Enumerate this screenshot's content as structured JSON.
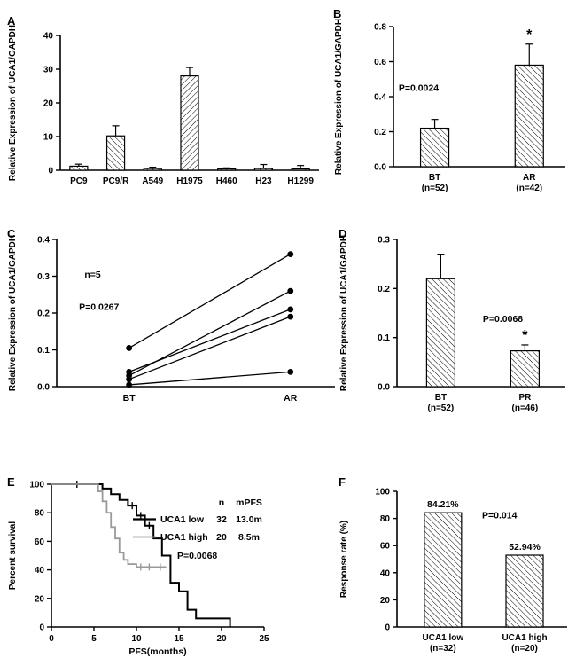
{
  "colors": {
    "ink": "#000000",
    "gray": "#9a9a9a",
    "background": "#ffffff"
  },
  "panels": {
    "A": {
      "label": "A"
    },
    "B": {
      "label": "B"
    },
    "C": {
      "label": "C"
    },
    "D": {
      "label": "D"
    },
    "E": {
      "label": "E"
    },
    "F": {
      "label": "F"
    }
  },
  "chart_data": [
    {
      "panel": "A",
      "type": "bar",
      "ylabel": "Relative Expression of UCA1/GAPDH",
      "ylim": [
        0,
        40
      ],
      "ytick_labels": [
        "0",
        "10",
        "20",
        "30",
        "40"
      ],
      "categories": [
        "PC9",
        "PC9/R",
        "A549",
        "H1975",
        "H460",
        "H23",
        "H1299"
      ],
      "values": [
        1.2,
        10.2,
        0.5,
        28,
        0.4,
        0.5,
        0.4
      ],
      "errors": [
        0.6,
        3.0,
        0.4,
        2.5,
        0.3,
        1.2,
        1.0
      ],
      "hatch_dirs": [
        "/",
        "/",
        "/",
        "\\",
        "/",
        "/",
        "/"
      ]
    },
    {
      "panel": "B",
      "type": "bar",
      "ylabel": "Relative Expression of UCA1/GAPDH",
      "ylim": [
        0,
        0.8
      ],
      "ytick_labels": [
        "0.0",
        "0.2",
        "0.4",
        "0.6",
        "0.8"
      ],
      "categories": [
        "BT",
        "AR"
      ],
      "subcategories": [
        "(n=52)",
        "(n=42)"
      ],
      "values": [
        0.22,
        0.58
      ],
      "errors": [
        0.05,
        0.12
      ],
      "annotations": [
        "P=0.0024"
      ],
      "star_symbol": "*",
      "star_index": 1
    },
    {
      "panel": "C",
      "type": "paired-line",
      "ylabel": "Relative Expression of UCA1/GAPDH",
      "ylim": [
        0,
        0.4
      ],
      "ytick_labels": [
        "0.0",
        "0.1",
        "0.2",
        "0.3",
        "0.4"
      ],
      "categories": [
        "BT",
        "AR"
      ],
      "pairs": [
        [
          0.105,
          0.36
        ],
        [
          0.03,
          0.26
        ],
        [
          0.04,
          0.21
        ],
        [
          0.02,
          0.19
        ],
        [
          0.005,
          0.04
        ]
      ],
      "annotations": [
        "n=5",
        "P=0.0267"
      ]
    },
    {
      "panel": "D",
      "type": "bar",
      "ylabel": "Relative Expression of UCA1/GAPDH",
      "ylim": [
        0,
        0.3
      ],
      "ytick_labels": [
        "0.0",
        "0.1",
        "0.2",
        "0.3"
      ],
      "categories": [
        "BT",
        "PR"
      ],
      "subcategories": [
        "(n=52)",
        "(n=46)"
      ],
      "values": [
        0.22,
        0.073
      ],
      "errors": [
        0.05,
        0.012
      ],
      "annotations": [
        "P=0.0068"
      ],
      "star_symbol": "*",
      "star_index": 1
    },
    {
      "panel": "E",
      "type": "km-survival",
      "ylabel": "Percent survival",
      "xlabel": "PFS(months)",
      "xlim": [
        0,
        25
      ],
      "ylim": [
        0,
        100
      ],
      "xtick_labels": [
        "0",
        "5",
        "10",
        "15",
        "20",
        "25"
      ],
      "ytick_labels": [
        "0",
        "20",
        "40",
        "60",
        "80",
        "100"
      ],
      "legend_headers": [
        "n",
        "mPFS"
      ],
      "p_value": "P=0.0068",
      "series": [
        {
          "name": "UCA1 low",
          "n": "32",
          "mpfs": "13.0m",
          "color": "#000000",
          "steps": [
            [
              0,
              100
            ],
            [
              6,
              100
            ],
            [
              6,
              97
            ],
            [
              7,
              97
            ],
            [
              7,
              93
            ],
            [
              8,
              93
            ],
            [
              8,
              89
            ],
            [
              9,
              89
            ],
            [
              9,
              85
            ],
            [
              10,
              85
            ],
            [
              10,
              78
            ],
            [
              11,
              78
            ],
            [
              11,
              71
            ],
            [
              12,
              71
            ],
            [
              12,
              62
            ],
            [
              13,
              62
            ],
            [
              13,
              50
            ],
            [
              14,
              50
            ],
            [
              14,
              31
            ],
            [
              15,
              31
            ],
            [
              15,
              25
            ],
            [
              16,
              25
            ],
            [
              16,
              12
            ],
            [
              17,
              12
            ],
            [
              17,
              6
            ],
            [
              21,
              6
            ],
            [
              21,
              0
            ]
          ],
          "censors": [
            [
              3,
              100
            ],
            [
              9.5,
              85
            ],
            [
              10.5,
              78
            ],
            [
              11.5,
              71
            ]
          ]
        },
        {
          "name": "UCA1 high",
          "n": "20",
          "mpfs": "8.5m",
          "color": "#9a9a9a",
          "steps": [
            [
              0,
              100
            ],
            [
              5.5,
              100
            ],
            [
              5.5,
              95
            ],
            [
              6,
              95
            ],
            [
              6,
              88
            ],
            [
              6.5,
              88
            ],
            [
              6.5,
              80
            ],
            [
              7,
              80
            ],
            [
              7,
              70
            ],
            [
              7.5,
              70
            ],
            [
              7.5,
              62
            ],
            [
              8,
              62
            ],
            [
              8,
              52
            ],
            [
              8.5,
              52
            ],
            [
              8.5,
              47
            ],
            [
              9,
              47
            ],
            [
              9,
              44
            ],
            [
              10,
              44
            ],
            [
              10,
              42
            ],
            [
              13.5,
              42
            ]
          ],
          "censors": [
            [
              10.5,
              42
            ],
            [
              11.5,
              42
            ],
            [
              12.8,
              42
            ]
          ]
        }
      ]
    },
    {
      "panel": "F",
      "type": "bar",
      "ylabel": "Response rate (%)",
      "ylim": [
        0,
        100
      ],
      "ytick_labels": [
        "0",
        "20",
        "40",
        "60",
        "80",
        "100"
      ],
      "categories": [
        "UCA1 low",
        "UCA1 high"
      ],
      "subcategories": [
        "(n=32)",
        "(n=20)"
      ],
      "values": [
        84.21,
        52.94
      ],
      "errors": null,
      "value_labels": [
        "84.21%",
        "52.94%"
      ],
      "annotations": [
        "P=0.014"
      ]
    }
  ]
}
